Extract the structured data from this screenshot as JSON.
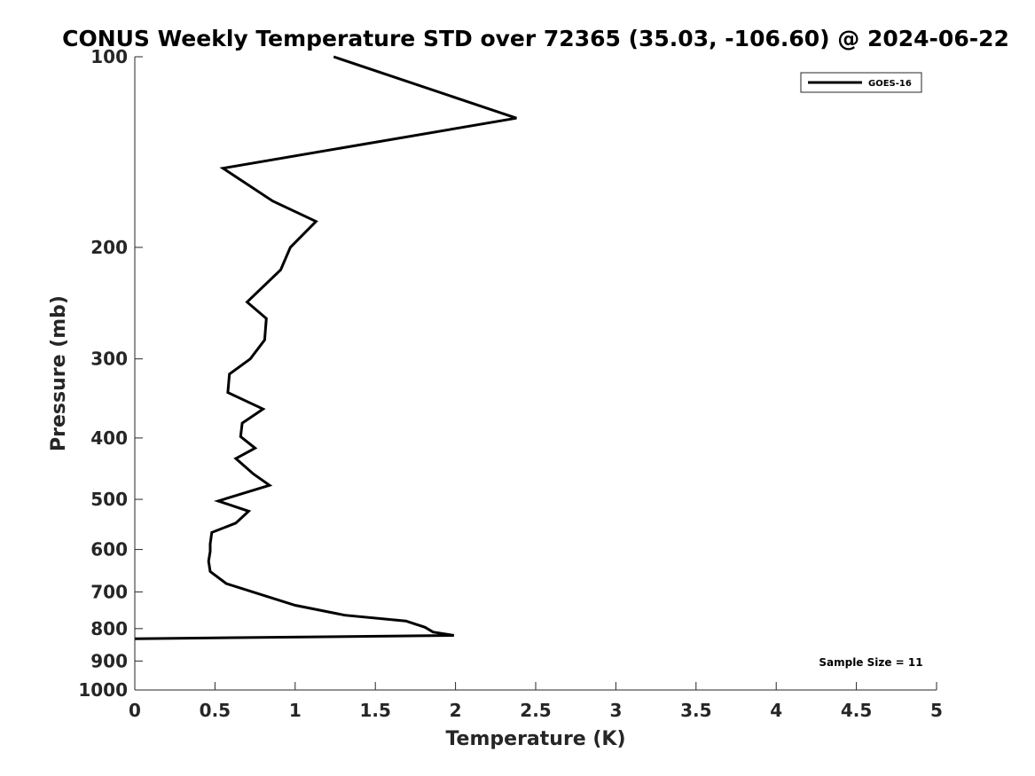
{
  "chart_data": {
    "type": "line",
    "title": "CONUS Weekly Temperature STD over 72365 (35.03, -106.60) @ 2024-06-22",
    "xlabel": "Temperature (K)",
    "ylabel": "Pressure (mb)",
    "xlim": [
      0,
      5
    ],
    "ylim": [
      100,
      1000
    ],
    "y_scale": "log",
    "y_reversed": true,
    "x_ticks": [
      0,
      0.5,
      1,
      1.5,
      2,
      2.5,
      3,
      3.5,
      4,
      4.5,
      5
    ],
    "x_tick_labels": [
      "0",
      "0.5",
      "1",
      "1.5",
      "2",
      "2.5",
      "3",
      "3.5",
      "4",
      "4.5",
      "5"
    ],
    "y_ticks": [
      100,
      200,
      300,
      400,
      500,
      600,
      700,
      800,
      900,
      1000
    ],
    "y_tick_labels": [
      "100",
      "200",
      "300",
      "400",
      "500",
      "600",
      "700",
      "800",
      "900",
      "1000"
    ],
    "grid": false,
    "legend_position": "top-right",
    "annotation": "Sample Size = 11",
    "series": [
      {
        "name": "GOES-16",
        "color": "#000000",
        "points": [
          [
            1.24,
            100
          ],
          [
            2.38,
            125
          ],
          [
            0.55,
            150
          ],
          [
            0.86,
            169
          ],
          [
            1.13,
            182
          ],
          [
            0.97,
            200
          ],
          [
            0.91,
            217
          ],
          [
            0.7,
            244
          ],
          [
            0.82,
            259
          ],
          [
            0.81,
            280
          ],
          [
            0.72,
            300
          ],
          [
            0.59,
            317
          ],
          [
            0.58,
            339
          ],
          [
            0.8,
            360
          ],
          [
            0.67,
            379
          ],
          [
            0.66,
            398
          ],
          [
            0.75,
            415
          ],
          [
            0.63,
            431
          ],
          [
            0.74,
            456
          ],
          [
            0.84,
            475
          ],
          [
            0.52,
            503
          ],
          [
            0.71,
            522
          ],
          [
            0.63,
            545
          ],
          [
            0.48,
            564
          ],
          [
            0.47,
            588
          ],
          [
            0.47,
            604
          ],
          [
            0.46,
            626
          ],
          [
            0.47,
            650
          ],
          [
            0.57,
            679
          ],
          [
            1.0,
            735
          ],
          [
            1.31,
            762
          ],
          [
            1.69,
            778
          ],
          [
            1.81,
            796
          ],
          [
            1.86,
            810
          ],
          [
            1.99,
            820
          ],
          [
            0.0,
            830
          ]
        ]
      }
    ]
  }
}
